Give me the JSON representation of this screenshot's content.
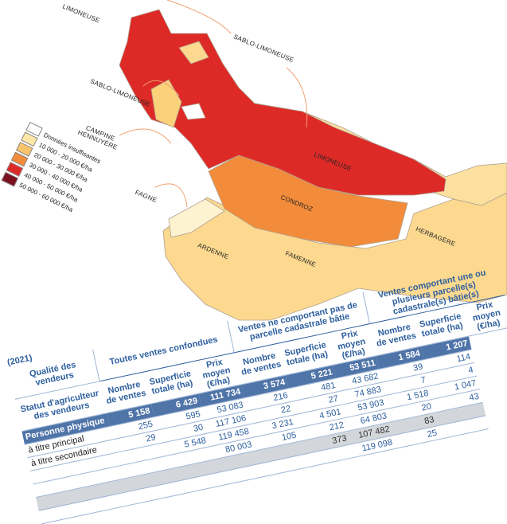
{
  "map": {
    "labels": [
      "LIMONEUSE",
      "SABLO-LIMONEUSE",
      "SABLO-LIMONEUSE",
      "CAMPINE HENNUYÈRE",
      "LIMONEUSE",
      "FAGNE",
      "CONDROZ",
      "HERBAGÈRE",
      "ARDENNE",
      "FAMENNE"
    ],
    "legend": [
      "Données insuffisantes",
      "10 000 - 20 000 €/ha",
      "20 000 - 30 000 €/ha",
      "30 000 - 40 000 €/ha",
      "40 000 - 50 000 €/ha",
      "50 000 - 60 000 €/ha"
    ]
  },
  "table": {
    "caption": "(2021)",
    "row_headers": [
      "Qualité des vendeurs",
      "Statut d'agriculteur des vendeurs"
    ],
    "groups": [
      "Toutes ventes confondues",
      "Ventes ne comportant pas de parcelle cadastrale bâtie",
      "Ventes comportant une ou plusieurs parcelle(s) cadastrale(s) bâtie(s)"
    ],
    "sub_headers": [
      "Nombre de ventes",
      "Superficie totale (ha)",
      "Prix moyen (€/ha)"
    ],
    "rows": [
      {
        "label": "Personne physique",
        "cells": [
          "5 158",
          "6 429",
          "111 734",
          "3 574",
          "5 221",
          "53 511",
          "1 584",
          "1 207"
        ]
      },
      {
        "label": "à titre principal",
        "cells": [
          "255",
          "595",
          "53 083",
          "216",
          "481",
          "43 682",
          "39",
          "114"
        ]
      },
      {
        "label": "à titre secondaire",
        "cells": [
          "29",
          "30",
          "117 106",
          "22",
          "27",
          "74 883",
          "7",
          "4"
        ]
      },
      {
        "label": null,
        "cells": [
          null,
          "5 548",
          "119 458",
          "3 231",
          "4 501",
          "53 903",
          "1 518",
          "1 047"
        ]
      },
      {
        "label": null,
        "cells": [
          null,
          null,
          "80 003",
          "105",
          "212",
          "64 803",
          "20",
          "43"
        ]
      },
      {
        "label": null,
        "cells": [
          null,
          null,
          null,
          null,
          "373",
          "107 482",
          "83",
          null
        ]
      },
      {
        "label": null,
        "cells": [
          null,
          null,
          null,
          null,
          null,
          "119 098",
          "25",
          null
        ]
      }
    ]
  }
}
